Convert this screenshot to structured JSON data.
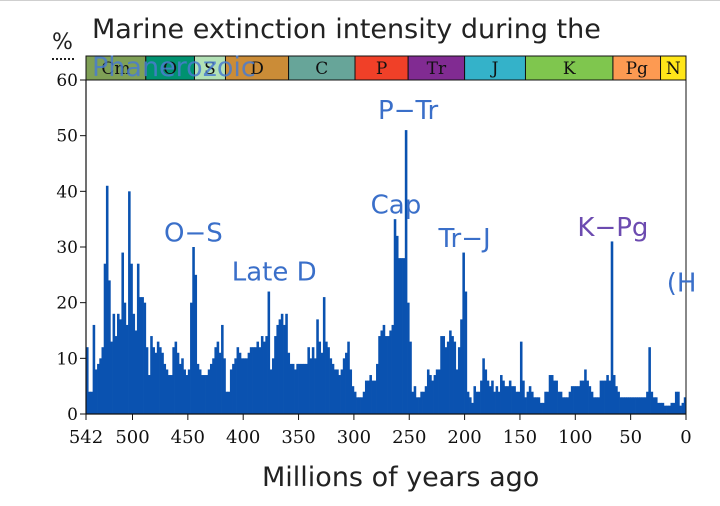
{
  "chart_data": {
    "type": "bar",
    "title": "Marine extinction intensity during the",
    "title_overlay": "Phanerozoic",
    "ylabel": "%",
    "xlabel": "Millions of years ago",
    "xlim": [
      542,
      0
    ],
    "ylim": [
      0,
      60
    ],
    "yticks": [
      0,
      10,
      20,
      30,
      40,
      50,
      60
    ],
    "xticks": [
      {
        "value": 542,
        "label": "542"
      },
      {
        "value": 500,
        "label": "500"
      },
      {
        "value": 450,
        "label": "450"
      },
      {
        "value": 400,
        "label": "400"
      },
      {
        "value": 350,
        "label": "350"
      },
      {
        "value": 300,
        "label": "300"
      },
      {
        "value": 250,
        "label": "250"
      },
      {
        "value": 200,
        "label": "200"
      },
      {
        "value": 150,
        "label": "150"
      },
      {
        "value": 100,
        "label": "100"
      },
      {
        "value": 50,
        "label": "50"
      },
      {
        "value": 0,
        "label": "0"
      }
    ],
    "bar_color": "#0a52b0",
    "periods": [
      {
        "label": "Cm",
        "start": 542,
        "end": 488,
        "color": "#7fa056"
      },
      {
        "label": "O",
        "start": 488,
        "end": 444,
        "color": "#009270"
      },
      {
        "label": "S",
        "start": 444,
        "end": 416,
        "color": "#b3e1b6"
      },
      {
        "label": "D",
        "start": 416,
        "end": 359,
        "color": "#cb8c37"
      },
      {
        "label": "C",
        "start": 359,
        "end": 299,
        "color": "#67a599"
      },
      {
        "label": "P",
        "start": 299,
        "end": 251,
        "color": "#f04028"
      },
      {
        "label": "Tr",
        "start": 251,
        "end": 200,
        "color": "#812b92"
      },
      {
        "label": "J",
        "start": 200,
        "end": 145,
        "color": "#34b2c9"
      },
      {
        "label": "K",
        "start": 145,
        "end": 66,
        "color": "#7fc64e"
      },
      {
        "label": "Pg",
        "start": 66,
        "end": 23,
        "color": "#fd9a52"
      },
      {
        "label": "N",
        "start": 23,
        "end": 0,
        "color": "#ffe619"
      }
    ],
    "series": [
      {
        "name": "Extinction intensity",
        "points": [
          [
            542,
            12
          ],
          [
            540,
            4
          ],
          [
            538,
            4
          ],
          [
            536,
            16
          ],
          [
            534,
            8
          ],
          [
            532,
            9
          ],
          [
            530,
            10
          ],
          [
            528,
            12
          ],
          [
            526,
            27
          ],
          [
            524,
            41
          ],
          [
            522,
            24
          ],
          [
            520,
            13
          ],
          [
            518,
            18
          ],
          [
            516,
            14
          ],
          [
            514,
            18
          ],
          [
            512,
            17
          ],
          [
            510,
            29
          ],
          [
            508,
            20
          ],
          [
            506,
            16
          ],
          [
            504,
            40
          ],
          [
            502,
            27
          ],
          [
            500,
            18
          ],
          [
            498,
            15
          ],
          [
            496,
            27
          ],
          [
            494,
            21
          ],
          [
            492,
            21
          ],
          [
            490,
            20
          ],
          [
            488,
            12
          ],
          [
            486,
            7
          ],
          [
            484,
            14
          ],
          [
            482,
            12
          ],
          [
            480,
            11
          ],
          [
            478,
            13
          ],
          [
            476,
            12
          ],
          [
            474,
            11
          ],
          [
            472,
            9
          ],
          [
            470,
            8
          ],
          [
            468,
            7
          ],
          [
            466,
            7
          ],
          [
            464,
            12
          ],
          [
            462,
            13
          ],
          [
            460,
            11
          ],
          [
            458,
            9
          ],
          [
            456,
            10
          ],
          [
            454,
            8
          ],
          [
            452,
            7
          ],
          [
            450,
            8
          ],
          [
            448,
            20
          ],
          [
            446,
            30
          ],
          [
            444,
            25
          ],
          [
            442,
            9
          ],
          [
            440,
            8
          ],
          [
            438,
            7
          ],
          [
            436,
            7
          ],
          [
            434,
            7
          ],
          [
            432,
            8
          ],
          [
            430,
            9
          ],
          [
            428,
            10
          ],
          [
            426,
            12
          ],
          [
            424,
            13
          ],
          [
            422,
            11
          ],
          [
            420,
            16
          ],
          [
            418,
            10
          ],
          [
            416,
            4
          ],
          [
            414,
            4
          ],
          [
            412,
            8
          ],
          [
            410,
            9
          ],
          [
            408,
            10
          ],
          [
            406,
            12
          ],
          [
            404,
            11
          ],
          [
            402,
            10
          ],
          [
            400,
            10
          ],
          [
            398,
            10
          ],
          [
            396,
            11
          ],
          [
            394,
            12
          ],
          [
            392,
            12
          ],
          [
            390,
            12
          ],
          [
            388,
            13
          ],
          [
            386,
            12
          ],
          [
            384,
            14
          ],
          [
            382,
            13
          ],
          [
            380,
            14
          ],
          [
            378,
            22
          ],
          [
            376,
            8
          ],
          [
            374,
            10
          ],
          [
            372,
            14
          ],
          [
            370,
            16
          ],
          [
            368,
            17
          ],
          [
            366,
            18
          ],
          [
            364,
            16
          ],
          [
            362,
            18
          ],
          [
            360,
            11
          ],
          [
            358,
            9
          ],
          [
            356,
            9
          ],
          [
            354,
            8
          ],
          [
            352,
            9
          ],
          [
            350,
            9
          ],
          [
            348,
            9
          ],
          [
            346,
            9
          ],
          [
            344,
            9
          ],
          [
            342,
            12
          ],
          [
            340,
            10
          ],
          [
            338,
            12
          ],
          [
            336,
            10
          ],
          [
            334,
            17
          ],
          [
            332,
            13
          ],
          [
            330,
            11
          ],
          [
            328,
            21
          ],
          [
            326,
            13
          ],
          [
            324,
            12
          ],
          [
            322,
            10
          ],
          [
            320,
            9
          ],
          [
            318,
            8
          ],
          [
            316,
            8
          ],
          [
            314,
            7
          ],
          [
            312,
            8
          ],
          [
            310,
            10
          ],
          [
            308,
            11
          ],
          [
            306,
            13
          ],
          [
            304,
            8
          ],
          [
            302,
            5
          ],
          [
            300,
            4
          ],
          [
            298,
            3
          ],
          [
            296,
            3
          ],
          [
            294,
            3
          ],
          [
            292,
            4
          ],
          [
            290,
            6
          ],
          [
            288,
            6
          ],
          [
            286,
            7
          ],
          [
            284,
            6
          ],
          [
            282,
            6
          ],
          [
            280,
            9
          ],
          [
            278,
            14
          ],
          [
            276,
            15
          ],
          [
            274,
            16
          ],
          [
            272,
            14
          ],
          [
            270,
            14
          ],
          [
            268,
            15
          ],
          [
            266,
            16
          ],
          [
            264,
            35
          ],
          [
            262,
            32
          ],
          [
            260,
            28
          ],
          [
            258,
            28
          ],
          [
            256,
            28
          ],
          [
            254,
            51
          ],
          [
            252,
            20
          ],
          [
            250,
            13
          ],
          [
            248,
            4
          ],
          [
            246,
            5
          ],
          [
            244,
            3
          ],
          [
            242,
            3
          ],
          [
            240,
            4
          ],
          [
            238,
            4
          ],
          [
            236,
            5
          ],
          [
            234,
            8
          ],
          [
            232,
            7
          ],
          [
            230,
            6
          ],
          [
            228,
            7
          ],
          [
            226,
            8
          ],
          [
            224,
            8
          ],
          [
            222,
            14
          ],
          [
            220,
            14
          ],
          [
            218,
            12
          ],
          [
            216,
            13
          ],
          [
            214,
            15
          ],
          [
            212,
            14
          ],
          [
            210,
            13
          ],
          [
            208,
            8
          ],
          [
            206,
            12
          ],
          [
            204,
            17
          ],
          [
            202,
            29
          ],
          [
            200,
            22
          ],
          [
            198,
            4
          ],
          [
            196,
            3
          ],
          [
            194,
            2
          ],
          [
            192,
            5
          ],
          [
            190,
            4
          ],
          [
            188,
            4
          ],
          [
            186,
            6
          ],
          [
            184,
            10
          ],
          [
            182,
            8
          ],
          [
            180,
            6
          ],
          [
            178,
            5
          ],
          [
            176,
            6
          ],
          [
            174,
            4
          ],
          [
            172,
            5
          ],
          [
            170,
            4
          ],
          [
            168,
            7
          ],
          [
            166,
            6
          ],
          [
            164,
            5
          ],
          [
            162,
            5
          ],
          [
            160,
            6
          ],
          [
            158,
            5
          ],
          [
            156,
            5
          ],
          [
            154,
            4
          ],
          [
            152,
            4
          ],
          [
            150,
            13
          ],
          [
            148,
            6
          ],
          [
            146,
            3
          ],
          [
            144,
            4
          ],
          [
            142,
            5
          ],
          [
            140,
            4
          ],
          [
            138,
            3
          ],
          [
            136,
            3
          ],
          [
            134,
            3
          ],
          [
            132,
            2
          ],
          [
            130,
            2
          ],
          [
            128,
            4
          ],
          [
            126,
            4
          ],
          [
            124,
            7
          ],
          [
            122,
            7
          ],
          [
            120,
            6
          ],
          [
            118,
            6
          ],
          [
            116,
            4
          ],
          [
            114,
            4
          ],
          [
            112,
            3
          ],
          [
            110,
            3
          ],
          [
            108,
            3
          ],
          [
            106,
            4
          ],
          [
            104,
            5
          ],
          [
            102,
            5
          ],
          [
            100,
            5
          ],
          [
            98,
            5
          ],
          [
            96,
            6
          ],
          [
            94,
            6
          ],
          [
            92,
            8
          ],
          [
            90,
            6
          ],
          [
            88,
            5
          ],
          [
            86,
            4
          ],
          [
            84,
            3
          ],
          [
            82,
            3
          ],
          [
            80,
            3
          ],
          [
            78,
            6
          ],
          [
            76,
            6
          ],
          [
            74,
            6
          ],
          [
            72,
            7
          ],
          [
            70,
            6
          ],
          [
            68,
            31
          ],
          [
            66,
            7
          ],
          [
            64,
            5
          ],
          [
            62,
            4
          ],
          [
            60,
            3
          ],
          [
            58,
            3
          ],
          [
            56,
            3
          ],
          [
            54,
            3
          ],
          [
            52,
            3
          ],
          [
            50,
            3
          ],
          [
            48,
            3
          ],
          [
            46,
            3
          ],
          [
            44,
            3
          ],
          [
            42,
            3
          ],
          [
            40,
            3
          ],
          [
            38,
            3
          ],
          [
            36,
            4
          ],
          [
            34,
            12
          ],
          [
            32,
            4
          ],
          [
            30,
            3
          ],
          [
            28,
            3
          ],
          [
            26,
            2
          ],
          [
            24,
            2
          ],
          [
            22,
            2
          ],
          [
            20,
            1.5
          ],
          [
            18,
            1.5
          ],
          [
            16,
            1.5
          ],
          [
            14,
            2
          ],
          [
            12,
            2
          ],
          [
            10,
            4
          ],
          [
            8,
            4
          ],
          [
            6,
            1.5
          ],
          [
            4,
            2
          ],
          [
            2,
            3
          ],
          [
            0,
            1
          ]
        ]
      }
    ],
    "annotations": [
      {
        "label": "O−S",
        "x": 445,
        "y": 31,
        "color": "#3a6fc9"
      },
      {
        "label": "Late D",
        "x": 372,
        "y": 24,
        "color": "#3a6fc9"
      },
      {
        "label": "Cap",
        "x": 262,
        "y": 36,
        "color": "#3a6fc9"
      },
      {
        "label": "P−Tr",
        "x": 251,
        "y": 53,
        "color": "#3a6fc9"
      },
      {
        "label": "Tr−J",
        "x": 200,
        "y": 30,
        "color": "#3a6fc9"
      },
      {
        "label": "K−Pg",
        "x": 66,
        "y": 32,
        "color": "#6c4bb0"
      },
      {
        "label": "(H",
        "x": 4,
        "y": 22,
        "color": "#3a6fc9"
      }
    ]
  }
}
